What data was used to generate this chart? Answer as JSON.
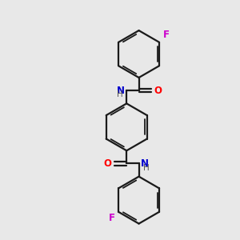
{
  "background_color": "#e8e8e8",
  "bond_color": "#1a1a1a",
  "nitrogen_color": "#0000cd",
  "oxygen_color": "#ff0000",
  "fluorine_color": "#cc00cc",
  "hydrogen_color": "#555555",
  "figsize": [
    3.0,
    3.0
  ],
  "dpi": 100,
  "xlim": [
    0,
    10
  ],
  "ylim": [
    0,
    10
  ]
}
